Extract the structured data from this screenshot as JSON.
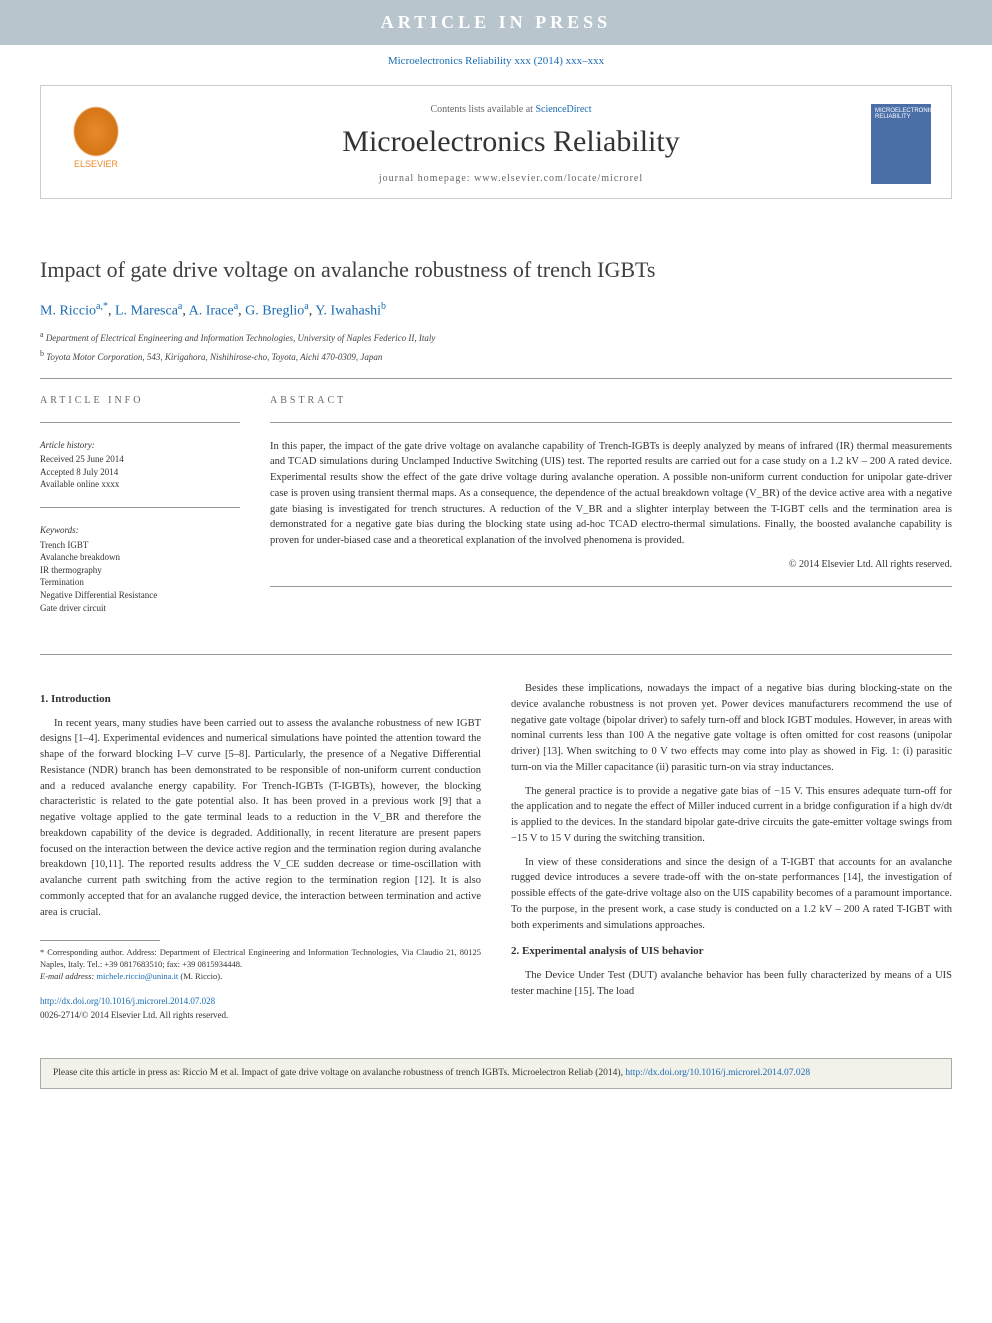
{
  "banner": "ARTICLE IN PRESS",
  "journal_ref": {
    "journal": "Microelectronics Reliability",
    "volume": "xxx (2014) xxx–xxx"
  },
  "header": {
    "contents_prefix": "Contents lists available at ",
    "contents_link": "ScienceDirect",
    "journal_name": "Microelectronics Reliability",
    "homepage_label": "journal homepage: ",
    "homepage_url": "www.elsevier.com/locate/microrel",
    "publisher_logo_text": "ELSEVIER",
    "cover_text": "MICROELECTRONICS RELIABILITY"
  },
  "title": "Impact of gate drive voltage on avalanche robustness of trench IGBTs",
  "authors_html": [
    {
      "name": "M. Riccio",
      "mark": "a,*"
    },
    {
      "name": "L. Maresca",
      "mark": "a"
    },
    {
      "name": "A. Irace",
      "mark": "a"
    },
    {
      "name": "G. Breglio",
      "mark": "a"
    },
    {
      "name": "Y. Iwahashi",
      "mark": "b"
    }
  ],
  "affiliations": [
    {
      "mark": "a",
      "text": "Department of Electrical Engineering and Information Technologies, University of Naples Federico II, Italy"
    },
    {
      "mark": "b",
      "text": "Toyota Motor Corporation, 543, Kirigahora, Nishihirose-cho, Toyota, Aichi 470-0309, Japan"
    }
  ],
  "article_info": {
    "label": "ARTICLE INFO",
    "history_head": "Article history:",
    "history": [
      "Received 25 June 2014",
      "Accepted 8 July 2014",
      "Available online xxxx"
    ],
    "keywords_head": "Keywords:",
    "keywords": [
      "Trench IGBT",
      "Avalanche breakdown",
      "IR thermography",
      "Termination",
      "Negative Differential Resistance",
      "Gate driver circuit"
    ]
  },
  "abstract": {
    "label": "ABSTRACT",
    "text": "In this paper, the impact of the gate drive voltage on avalanche capability of Trench-IGBTs is deeply analyzed by means of infrared (IR) thermal measurements and TCAD simulations during Unclamped Inductive Switching (UIS) test. The reported results are carried out for a case study on a 1.2 kV – 200 A rated device. Experimental results show the effect of the gate drive voltage during avalanche operation. A possible non-uniform current conduction for unipolar gate-driver case is proven using transient thermal maps. As a consequence, the dependence of the actual breakdown voltage (V_BR) of the device active area with a negative gate biasing is investigated for trench structures. A reduction of the V_BR and a slighter interplay between the T-IGBT cells and the termination area is demonstrated for a negative gate bias during the blocking state using ad-hoc TCAD electro-thermal simulations. Finally, the boosted avalanche capability is proven for under-biased case and a theoretical explanation of the involved phenomena is provided.",
    "copyright": "© 2014 Elsevier Ltd. All rights reserved."
  },
  "sections": {
    "intro_head": "1. Introduction",
    "intro_p1": "In recent years, many studies have been carried out to assess the avalanche robustness of new IGBT designs [1–4]. Experimental evidences and numerical simulations have pointed the attention toward the shape of the forward blocking I–V curve [5–8]. Particularly, the presence of a Negative Differential Resistance (NDR) branch has been demonstrated to be responsible of non-uniform current conduction and a reduced avalanche energy capability. For Trench-IGBTs (T-IGBTs), however, the blocking characteristic is related to the gate potential also. It has been proved in a previous work [9] that a negative voltage applied to the gate terminal leads to a reduction in the V_BR and therefore the breakdown capability of the device is degraded. Additionally, in recent literature are present papers focused on the interaction between the device active region and the termination region during avalanche breakdown [10,11]. The reported results address the V_CE sudden decrease or time-oscillation with avalanche current path switching from the active region to the termination region [12]. It is also commonly accepted that for an avalanche rugged device, the interaction between termination and active area is crucial.",
    "intro_p2": "Besides these implications, nowadays the impact of a negative bias during blocking-state on the device avalanche robustness is not proven yet. Power devices manufacturers recommend the use of negative gate voltage (bipolar driver) to safely turn-off and block IGBT modules. However, in areas with nominal currents less than 100 A the negative gate voltage is often omitted for cost reasons (unipolar driver) [13]. When switching to 0 V two effects may come into play as showed in Fig. 1: (i) parasitic turn-on via the Miller capacitance (ii) parasitic turn-on via stray inductances.",
    "intro_p3": "The general practice is to provide a negative gate bias of −15 V. This ensures adequate turn-off for the application and to negate the effect of Miller induced current in a bridge configuration if a high dv/dt is applied to the devices. In the standard bipolar gate-drive circuits the gate-emitter voltage swings from −15 V to 15 V during the switching transition.",
    "intro_p4": "In view of these considerations and since the design of a T-IGBT that accounts for an avalanche rugged device introduces a severe trade-off with the on-state performances [14], the investigation of possible effects of the gate-drive voltage also on the UIS capability becomes of a paramount importance. To the purpose, in the present work, a case study is conducted on a 1.2 kV – 200 A rated T-IGBT with both experiments and simulations approaches.",
    "exp_head": "2. Experimental analysis of UIS behavior",
    "exp_p1": "The Device Under Test (DUT) avalanche behavior has been fully characterized by means of a UIS tester machine [15]. The load"
  },
  "footnote": {
    "corr": "* Corresponding author. Address: Department of Electrical Engineering and Information Technologies, Via Claudio 21, 80125 Naples, Italy. Tel.: +39 0817683510; fax: +39 0815934448.",
    "email_label": "E-mail address: ",
    "email": "michele.riccio@unina.it",
    "email_who": " (M. Riccio)."
  },
  "doi": {
    "url": "http://dx.doi.org/10.1016/j.microrel.2014.07.028",
    "issn": "0026-2714/© 2014 Elsevier Ltd. All rights reserved."
  },
  "cite_box": {
    "text": "Please cite this article in press as: Riccio M et al. Impact of gate drive voltage on avalanche robustness of trench IGBTs. Microelectron Reliab (2014), ",
    "link": "http://dx.doi.org/10.1016/j.microrel.2014.07.028"
  },
  "colors": {
    "banner_bg": "#b8c5cc",
    "link": "#1a6bb3",
    "elsevier": "#e98a2b",
    "cover_bg": "#4a6fa8",
    "cite_bg": "#f3f2ea"
  }
}
